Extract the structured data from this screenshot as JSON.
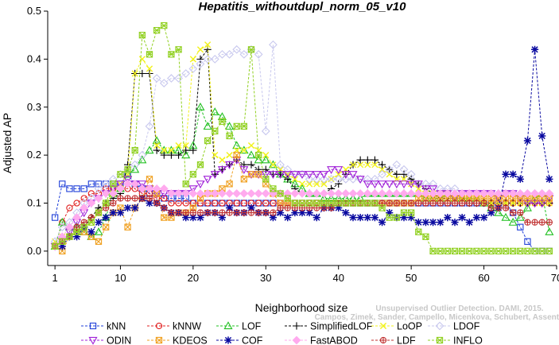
{
  "chart_data": {
    "type": "line",
    "title": "Hepatitis_withoutdupl_norm_05_v10",
    "xlabel": "Neighborhood size",
    "ylabel": "Adjusted AP",
    "xlim": [
      0,
      70
    ],
    "ylim": [
      -0.03,
      0.5
    ],
    "xticks": [
      1,
      10,
      20,
      30,
      40,
      50,
      60,
      70
    ],
    "yticks": [
      0.0,
      0.1,
      0.2,
      0.3,
      0.4,
      0.5
    ],
    "ytick_labels": [
      "0.0",
      "0.1",
      "0.2",
      "0.3",
      "0.4",
      "0.5"
    ],
    "grid": false,
    "legend_position": "bottom",
    "watermark": [
      "Unsupervised Outlier Detection. DAMI, 2015.",
      "Campos, Zimek, Sander, Campello, Micenkova, Schubert, Assent, Houle"
    ],
    "x": [
      1,
      2,
      3,
      4,
      5,
      6,
      7,
      8,
      9,
      10,
      11,
      12,
      13,
      14,
      15,
      16,
      17,
      18,
      19,
      20,
      21,
      22,
      23,
      24,
      25,
      26,
      27,
      28,
      29,
      30,
      31,
      32,
      33,
      34,
      35,
      36,
      37,
      38,
      39,
      40,
      41,
      42,
      43,
      44,
      45,
      46,
      47,
      48,
      49,
      50,
      51,
      52,
      53,
      54,
      55,
      56,
      57,
      58,
      59,
      60,
      61,
      62,
      63,
      64,
      65,
      66,
      67,
      68,
      69
    ],
    "series": [
      {
        "name": "kNN",
        "color": "#1f3fd8",
        "marker": "square",
        "values": [
          0.07,
          0.14,
          0.13,
          0.13,
          0.13,
          0.14,
          0.14,
          0.14,
          0.14,
          0.14,
          0.16,
          0.14,
          0.13,
          0.12,
          0.12,
          0.11,
          0.11,
          0.11,
          0.11,
          0.1,
          0.1,
          0.1,
          0.1,
          0.1,
          0.1,
          0.1,
          0.1,
          0.1,
          0.1,
          0.1,
          0.1,
          0.1,
          0.1,
          0.1,
          0.1,
          0.1,
          0.1,
          0.1,
          0.1,
          0.1,
          0.1,
          0.1,
          0.1,
          0.1,
          0.1,
          0.1,
          0.1,
          0.1,
          0.1,
          0.1,
          0.1,
          0.1,
          0.1,
          0.1,
          0.1,
          0.1,
          0.1,
          0.1,
          0.1,
          0.1,
          0.1,
          0.1,
          0.1,
          0.08,
          0.05,
          0.02,
          0.0,
          0.0,
          0.0
        ]
      },
      {
        "name": "kNNW",
        "color": "#e02020",
        "marker": "circle",
        "values": [
          0.01,
          0.06,
          0.09,
          0.1,
          0.11,
          0.12,
          0.12,
          0.13,
          0.13,
          0.13,
          0.13,
          0.13,
          0.12,
          0.12,
          0.11,
          0.11,
          0.1,
          0.1,
          0.1,
          0.1,
          0.1,
          0.1,
          0.1,
          0.1,
          0.1,
          0.1,
          0.1,
          0.1,
          0.1,
          0.1,
          0.1,
          0.1,
          0.1,
          0.1,
          0.1,
          0.1,
          0.1,
          0.1,
          0.1,
          0.1,
          0.1,
          0.1,
          0.1,
          0.1,
          0.1,
          0.1,
          0.1,
          0.1,
          0.1,
          0.1,
          0.1,
          0.1,
          0.1,
          0.1,
          0.1,
          0.1,
          0.1,
          0.1,
          0.1,
          0.1,
          0.1,
          0.1,
          0.1,
          0.1,
          0.1,
          0.1,
          0.1,
          0.1,
          0.1
        ]
      },
      {
        "name": "LOF",
        "color": "#22c022",
        "marker": "triangle-up",
        "values": [
          0.01,
          0.06,
          0.05,
          0.05,
          0.04,
          0.03,
          0.04,
          0.07,
          0.12,
          0.13,
          0.16,
          0.17,
          0.19,
          0.21,
          0.23,
          0.21,
          0.21,
          0.21,
          0.2,
          0.22,
          0.3,
          0.26,
          0.29,
          0.28,
          0.26,
          0.22,
          0.21,
          0.2,
          0.19,
          0.19,
          0.18,
          0.16,
          0.15,
          0.14,
          0.13,
          0.12,
          0.12,
          0.11,
          0.11,
          0.11,
          0.11,
          0.11,
          0.11,
          0.12,
          0.12,
          0.12,
          0.12,
          0.12,
          0.12,
          0.12,
          0.12,
          0.11,
          0.11,
          0.11,
          0.12,
          0.11,
          0.11,
          0.11,
          0.11,
          0.1,
          0.09,
          0.08,
          0.07,
          0.06,
          0.07,
          0.09,
          0.11,
          0.12,
          0.04
        ]
      },
      {
        "name": "SimplifiedLOF",
        "color": "#000000",
        "marker": "plus",
        "values": [
          0.01,
          0.02,
          0.03,
          0.04,
          0.05,
          0.07,
          0.09,
          0.1,
          0.11,
          0.12,
          0.18,
          0.37,
          0.37,
          0.37,
          0.21,
          0.2,
          0.2,
          0.2,
          0.21,
          0.21,
          0.4,
          0.42,
          0.16,
          0.17,
          0.18,
          0.19,
          0.18,
          0.18,
          0.17,
          0.17,
          0.16,
          0.16,
          0.15,
          0.13,
          0.12,
          0.12,
          0.12,
          0.12,
          0.13,
          0.14,
          0.16,
          0.18,
          0.19,
          0.19,
          0.19,
          0.18,
          0.17,
          0.16,
          0.16,
          0.15,
          0.14,
          0.13,
          0.12,
          0.11,
          0.11,
          0.11,
          0.11,
          0.1,
          0.1,
          0.1,
          0.1,
          0.1,
          0.1,
          0.1,
          0.1,
          0.1,
          0.1,
          0.1,
          0.1
        ]
      },
      {
        "name": "LoOP",
        "color": "#f2f21a",
        "marker": "cross",
        "values": [
          0.02,
          0.03,
          0.03,
          0.04,
          0.05,
          0.06,
          0.08,
          0.1,
          0.12,
          0.14,
          0.16,
          0.37,
          0.4,
          0.38,
          0.22,
          0.21,
          0.21,
          0.22,
          0.22,
          0.4,
          0.42,
          0.43,
          0.2,
          0.19,
          0.2,
          0.21,
          0.21,
          0.22,
          0.21,
          0.2,
          0.18,
          0.17,
          0.16,
          0.15,
          0.14,
          0.14,
          0.14,
          0.14,
          0.15,
          0.16,
          0.17,
          0.18,
          0.18,
          0.18,
          0.18,
          0.17,
          0.16,
          0.15,
          0.15,
          0.14,
          0.13,
          0.12,
          0.12,
          0.12,
          0.12,
          0.11,
          0.11,
          0.11,
          0.11,
          0.1,
          0.1,
          0.1,
          0.1,
          0.1,
          0.1,
          0.1,
          0.1,
          0.1,
          0.1
        ]
      },
      {
        "name": "LDOF",
        "color": "#c8c8ee",
        "marker": "diamond",
        "values": [
          0.02,
          0.05,
          0.06,
          0.08,
          0.1,
          0.11,
          0.13,
          0.14,
          0.15,
          0.16,
          0.17,
          0.18,
          0.2,
          0.26,
          0.36,
          0.35,
          0.36,
          0.36,
          0.37,
          0.38,
          0.39,
          0.4,
          0.4,
          0.41,
          0.41,
          0.42,
          0.41,
          0.42,
          0.41,
          0.25,
          0.43,
          0.18,
          0.17,
          0.16,
          0.16,
          0.15,
          0.15,
          0.15,
          0.15,
          0.15,
          0.15,
          0.15,
          0.15,
          0.15,
          0.15,
          0.16,
          0.17,
          0.18,
          0.17,
          0.16,
          0.14,
          0.14,
          0.14,
          0.13,
          0.13,
          0.13,
          0.12,
          0.12,
          0.12,
          0.12,
          0.12,
          0.12,
          0.12,
          0.12,
          0.12,
          0.12,
          0.12,
          0.12,
          0.12
        ]
      },
      {
        "name": "ODIN",
        "color": "#a020d8",
        "marker": "triangle-down",
        "values": [
          0.01,
          0.02,
          0.04,
          0.06,
          0.08,
          0.1,
          0.11,
          0.12,
          0.13,
          0.14,
          0.15,
          0.14,
          0.14,
          0.13,
          0.12,
          0.12,
          0.12,
          0.12,
          0.12,
          0.13,
          0.14,
          0.15,
          0.16,
          0.17,
          0.18,
          0.19,
          0.17,
          0.16,
          0.16,
          0.16,
          0.16,
          0.16,
          0.16,
          0.16,
          0.16,
          0.16,
          0.16,
          0.16,
          0.17,
          0.17,
          0.16,
          0.16,
          0.15,
          0.14,
          0.14,
          0.14,
          0.14,
          0.14,
          0.14,
          0.14,
          0.14,
          0.13,
          0.13,
          0.12,
          0.12,
          0.11,
          0.12,
          0.12,
          0.12,
          0.12,
          0.12,
          0.11,
          0.12,
          0.12,
          0.11,
          0.1,
          0.1,
          0.1,
          0.11
        ]
      },
      {
        "name": "KDEOS",
        "color": "#f0a020",
        "marker": "square-x",
        "values": [
          0.01,
          0.0,
          0.03,
          0.04,
          0.04,
          0.03,
          0.02,
          0.05,
          0.08,
          0.09,
          0.05,
          0.09,
          0.11,
          0.15,
          0.12,
          0.07,
          0.07,
          0.08,
          0.08,
          0.09,
          0.11,
          0.12,
          0.12,
          0.13,
          0.14,
          0.2,
          0.15,
          0.16,
          0.16,
          0.14,
          0.12,
          0.1,
          0.1,
          0.1,
          0.1,
          0.1,
          0.1,
          0.1,
          0.1,
          0.1,
          0.1,
          0.1,
          0.1,
          0.1,
          0.1,
          0.1,
          0.1,
          0.1,
          0.1,
          0.1,
          0.11,
          0.11,
          0.11,
          0.11,
          0.11,
          0.11,
          0.11,
          0.11,
          0.11,
          0.11,
          0.11,
          0.11,
          0.11,
          0.11,
          0.11,
          0.11,
          0.11,
          0.11,
          0.11
        ]
      },
      {
        "name": "COF",
        "color": "#0a0aa0",
        "marker": "asterisk",
        "values": [
          0.01,
          0.01,
          0.03,
          0.03,
          0.05,
          0.04,
          0.06,
          0.07,
          0.08,
          0.08,
          0.09,
          0.09,
          0.11,
          0.1,
          0.1,
          0.09,
          0.08,
          0.08,
          0.07,
          0.07,
          0.07,
          0.08,
          0.08,
          0.07,
          0.09,
          0.08,
          0.08,
          0.09,
          0.08,
          0.08,
          0.07,
          0.08,
          0.07,
          0.08,
          0.08,
          0.08,
          0.07,
          0.09,
          0.09,
          0.09,
          0.08,
          0.07,
          0.07,
          0.07,
          0.07,
          0.06,
          0.08,
          0.07,
          0.07,
          0.07,
          0.06,
          0.06,
          0.06,
          0.06,
          0.07,
          0.06,
          0.07,
          0.06,
          0.07,
          0.07,
          0.08,
          0.09,
          0.16,
          0.16,
          0.15,
          0.23,
          0.42,
          0.24,
          0.15
        ]
      },
      {
        "name": "FastABOD",
        "color": "#ffaaee",
        "marker": "diamond-filled",
        "values": [
          0.01,
          0.03,
          0.05,
          0.07,
          0.09,
          0.1,
          0.11,
          0.12,
          0.12,
          0.13,
          0.14,
          0.14,
          0.13,
          0.13,
          0.13,
          0.13,
          0.12,
          0.12,
          0.12,
          0.12,
          0.12,
          0.12,
          0.12,
          0.12,
          0.12,
          0.12,
          0.12,
          0.12,
          0.12,
          0.12,
          0.12,
          0.12,
          0.12,
          0.12,
          0.12,
          0.12,
          0.12,
          0.12,
          0.12,
          0.12,
          0.12,
          0.12,
          0.12,
          0.12,
          0.12,
          0.12,
          0.12,
          0.12,
          0.12,
          0.12,
          0.12,
          0.12,
          0.12,
          0.12,
          0.12,
          0.12,
          0.12,
          0.12,
          0.12,
          0.12,
          0.12,
          0.12,
          0.12,
          0.12,
          0.12,
          0.12,
          0.12,
          0.12,
          0.12
        ]
      },
      {
        "name": "LDF",
        "color": "#c03030",
        "marker": "circle-plus",
        "values": [
          0.01,
          0.02,
          0.03,
          0.05,
          0.06,
          0.07,
          0.08,
          0.09,
          0.1,
          0.11,
          0.11,
          0.11,
          0.11,
          0.11,
          0.1,
          0.09,
          0.08,
          0.08,
          0.08,
          0.08,
          0.08,
          0.08,
          0.08,
          0.08,
          0.08,
          0.08,
          0.08,
          0.08,
          0.08,
          0.08,
          0.08,
          0.09,
          0.09,
          0.09,
          0.09,
          0.09,
          0.09,
          0.09,
          0.09,
          0.1,
          0.1,
          0.1,
          0.1,
          0.1,
          0.1,
          0.1,
          0.1,
          0.1,
          0.1,
          0.1,
          0.1,
          0.1,
          0.1,
          0.1,
          0.1,
          0.1,
          0.1,
          0.1,
          0.1,
          0.1,
          0.09,
          0.09,
          0.09,
          0.08,
          0.08,
          0.06,
          0.06,
          0.06,
          0.06
        ]
      },
      {
        "name": "INFLO",
        "color": "#90d020",
        "marker": "hourglass",
        "values": [
          0.01,
          0.02,
          0.03,
          0.04,
          0.05,
          0.06,
          0.08,
          0.1,
          0.14,
          0.16,
          0.17,
          0.21,
          0.45,
          0.41,
          0.46,
          0.47,
          0.41,
          0.42,
          0.14,
          0.16,
          0.18,
          0.23,
          0.25,
          0.27,
          0.24,
          0.26,
          0.26,
          0.42,
          0.2,
          0.15,
          0.13,
          0.12,
          0.11,
          0.1,
          0.1,
          0.1,
          0.1,
          0.1,
          0.1,
          0.1,
          0.1,
          0.1,
          0.1,
          0.1,
          0.1,
          0.09,
          0.07,
          0.07,
          0.08,
          0.08,
          0.04,
          0.03,
          0.0,
          0.0,
          0.0,
          0.0,
          0.0,
          0.0,
          0.0,
          0.0,
          0.0,
          0.0,
          0.0,
          0.0,
          0.0,
          0.0,
          0.0,
          0.0,
          0.0
        ]
      }
    ]
  }
}
